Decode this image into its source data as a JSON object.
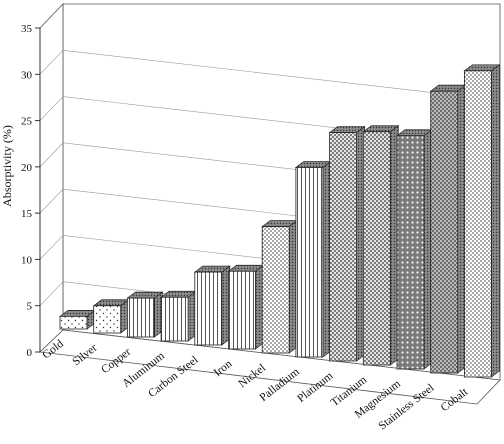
{
  "chart_data": {
    "type": "bar",
    "title": "",
    "xlabel": "",
    "ylabel": "Absorptivity (%)",
    "ylim": [
      0,
      35
    ],
    "yticks": [
      0,
      5,
      10,
      15,
      20,
      25,
      30,
      35
    ],
    "grid": true,
    "style": "3d",
    "categories": [
      "Gold",
      "Silver",
      "Copper",
      "Aluminum",
      "Carbon Steel",
      "Iron",
      "Nickel",
      "Palladium",
      "Platinum",
      "Titanium",
      "Magnesium",
      "Stainless Steel",
      "Cobalt"
    ],
    "values": [
      1.3,
      2.8,
      4.0,
      4.5,
      7.5,
      8.0,
      13.0,
      19.5,
      23.5,
      24.0,
      24.0,
      29.0,
      31.5
    ]
  }
}
